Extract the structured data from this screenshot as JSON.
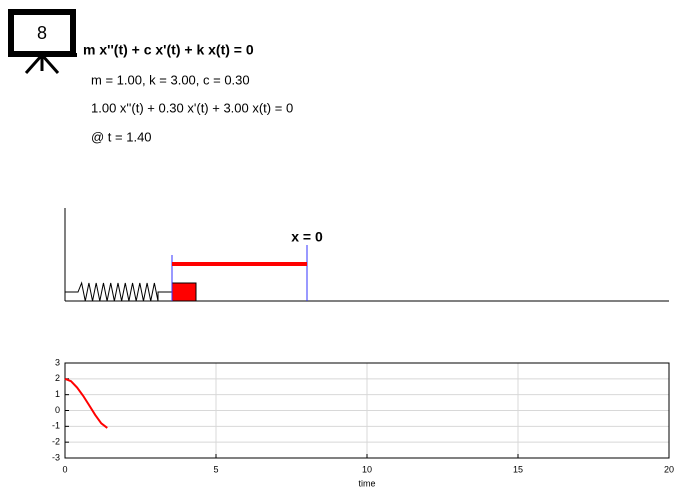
{
  "icon_label": "8",
  "equation": "m x''(t) + c x'(t) + k x(t) = 0",
  "parameters": "m = 1.00, k = 3.00, c = 0.30",
  "instance": "1.00 x''(t) + 0.30 x'(t) + 3.00 x(t) = 0",
  "time_label": "@ t = 1.40",
  "diagram": {
    "origin_label": "x = 0"
  },
  "chart_data": {
    "type": "line",
    "xlabel": "time",
    "x": [
      0,
      0.2,
      0.4,
      0.6,
      0.8,
      1.0,
      1.2,
      1.4
    ],
    "values": [
      2,
      1.85,
      1.45,
      0.93,
      0.33,
      -0.28,
      -0.81,
      -1.1
    ],
    "color": "#ff0000",
    "xlim": [
      0,
      20
    ],
    "ylim": [
      -3,
      3
    ],
    "xticks": [
      0,
      5,
      10,
      15,
      20
    ],
    "yticks": [
      -3,
      -2,
      -1,
      0,
      1,
      2,
      3
    ],
    "grid": true
  }
}
